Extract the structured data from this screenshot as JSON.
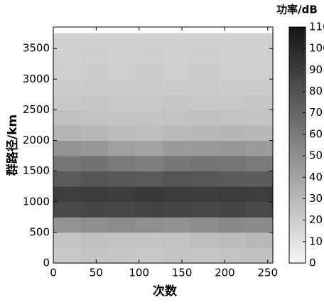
{
  "chart_data": {
    "type": "heatmap",
    "colorbar_title": "功率/dB",
    "x_label": "次数",
    "y_label": "群路径/km",
    "x_edges": [
      0,
      32,
      64,
      96,
      128,
      160,
      192,
      224,
      256
    ],
    "y_edges": [
      0,
      250,
      500,
      750,
      1000,
      1250,
      1500,
      1750,
      2000,
      2250,
      2500,
      2750,
      3000,
      3250,
      3500,
      3750
    ],
    "z": [
      [
        22,
        24,
        23,
        22,
        24,
        23,
        25,
        26
      ],
      [
        24,
        26,
        25,
        24,
        25,
        27,
        28,
        30
      ],
      [
        48,
        50,
        52,
        50,
        49,
        51,
        53,
        52
      ],
      [
        84,
        86,
        85,
        87,
        86,
        85,
        86,
        84
      ],
      [
        90,
        91,
        90,
        92,
        91,
        90,
        91,
        90
      ],
      [
        76,
        78,
        77,
        76,
        78,
        77,
        76,
        75
      ],
      [
        62,
        64,
        60,
        58,
        61,
        63,
        62,
        60
      ],
      [
        48,
        46,
        42,
        40,
        44,
        45,
        46,
        44
      ],
      [
        32,
        30,
        28,
        27,
        29,
        30,
        31,
        30
      ],
      [
        26,
        25,
        24,
        24,
        25,
        26,
        25,
        24
      ],
      [
        22,
        23,
        22,
        22,
        23,
        22,
        22,
        23
      ],
      [
        20,
        21,
        20,
        21,
        20,
        21,
        20,
        20
      ],
      [
        19,
        20,
        19,
        20,
        19,
        20,
        19,
        19
      ],
      [
        18,
        19,
        18,
        19,
        18,
        19,
        18,
        18
      ],
      [
        18,
        18,
        18,
        18,
        18,
        18,
        18,
        18
      ]
    ],
    "xlim": [
      0,
      256
    ],
    "xticks": [
      0,
      50,
      100,
      150,
      200,
      250
    ],
    "ylim": [
      0,
      3850
    ],
    "yticks": [
      0,
      500,
      1000,
      1500,
      2000,
      2500,
      3000,
      3500
    ],
    "clim": [
      0,
      110
    ],
    "cticks": [
      0,
      10,
      20,
      30,
      40,
      50,
      60,
      70,
      80,
      90,
      100,
      110
    ],
    "colormap": "gray_reversed"
  }
}
